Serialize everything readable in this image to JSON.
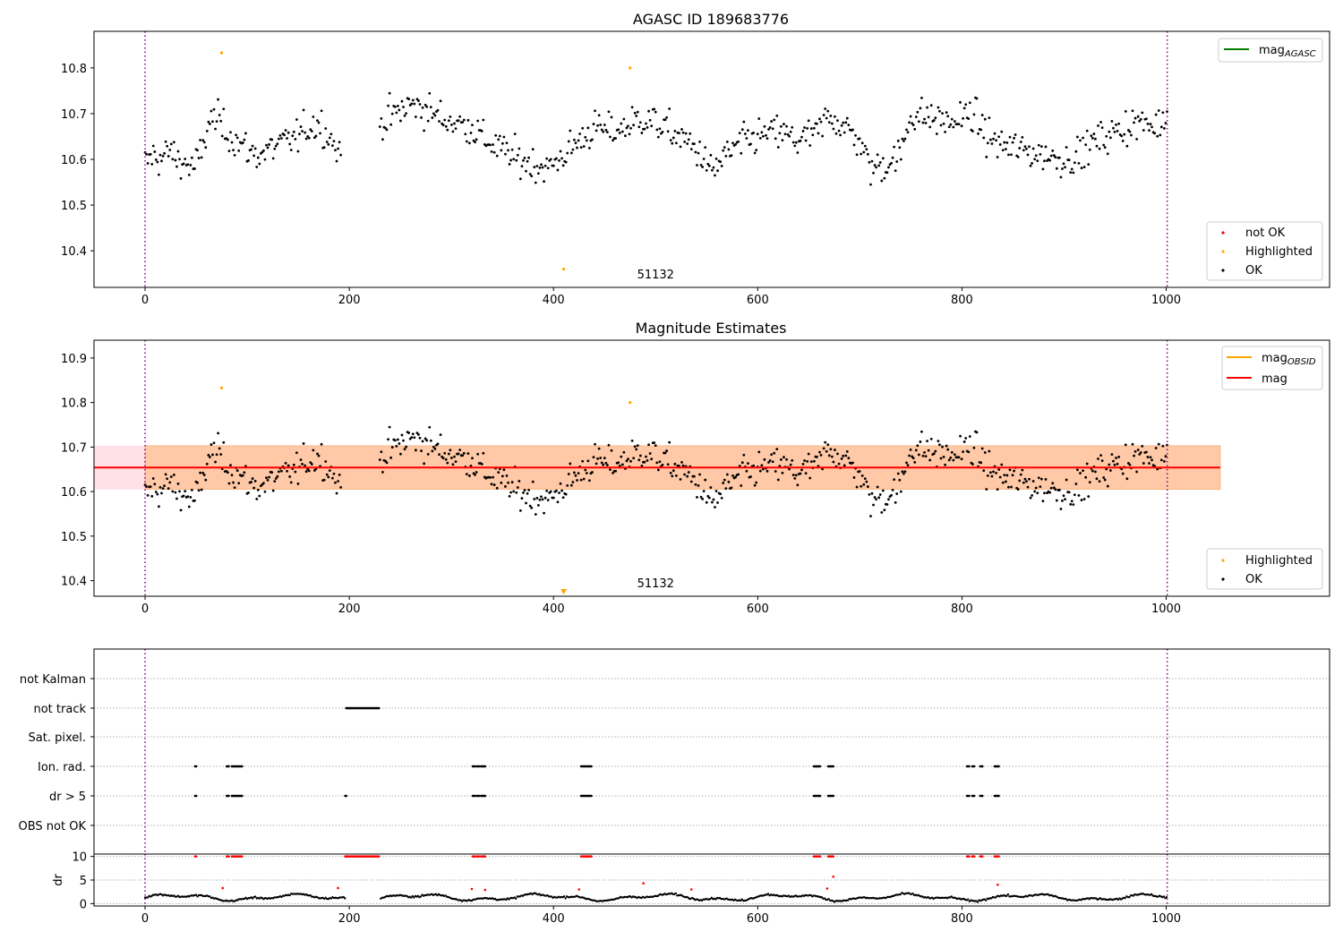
{
  "colors": {
    "ok": "#000000",
    "not_ok": "#ff0000",
    "highlighted": "#ffa500",
    "mag_agasc": "#008000",
    "mag_obsid": "#ffa500",
    "mag": "#ff0000",
    "band_inner": "#ffc8a6",
    "band_outer": "#ffe0e6",
    "obs_boundary": "#800080"
  },
  "chart_data": [
    {
      "type": "scatter",
      "title": "AGASC ID 189683776",
      "xlabel": "",
      "ylabel": "",
      "xlim": [
        -50,
        1160
      ],
      "ylim": [
        10.32,
        10.88
      ],
      "xticks": [
        0,
        200,
        400,
        600,
        800,
        1000
      ],
      "yticks": [
        10.4,
        10.5,
        10.6,
        10.7,
        10.8
      ],
      "obs_boundaries": [
        0,
        1001
      ],
      "obsid_label": {
        "text": "51132",
        "x": 500,
        "y": 10.34
      },
      "legend_lines": [
        {
          "name": "mag_AGASC",
          "base": "mag",
          "sub": "AGASC",
          "color": "#008000"
        }
      ],
      "legend_points": [
        {
          "name": "not OK",
          "color": "#ff0000"
        },
        {
          "name": "Highlighted",
          "color": "#ffa500"
        },
        {
          "name": "OK",
          "color": "#000000"
        }
      ],
      "lc_segments": [
        {
          "x": [
            0,
            8,
            16,
            24,
            32,
            40,
            48,
            56,
            62,
            70,
            80,
            90,
            100,
            110,
            120,
            130,
            140,
            150,
            160,
            170,
            178,
            186,
            192
          ],
          "y": [
            10.59,
            10.61,
            10.6,
            10.62,
            10.6,
            10.59,
            10.58,
            10.62,
            10.68,
            10.69,
            10.66,
            10.64,
            10.62,
            10.61,
            10.62,
            10.63,
            10.64,
            10.65,
            10.67,
            10.68,
            10.66,
            10.63,
            10.6
          ]
        },
        {
          "x": [
            230,
            245,
            260,
            275,
            290,
            305,
            320,
            335,
            350,
            365,
            380,
            395,
            410,
            425,
            440,
            455,
            470,
            485,
            500,
            515,
            530,
            545,
            555,
            565,
            580,
            600,
            620,
            640,
            660,
            670,
            680,
            700,
            710,
            725,
            740,
            750,
            770,
            790,
            810,
            825,
            840,
            860,
            880,
            900,
            915,
            930,
            950,
            970,
            990,
            1001
          ],
          "y": [
            10.68,
            10.7,
            10.72,
            10.71,
            10.69,
            10.68,
            10.67,
            10.64,
            10.62,
            10.6,
            10.59,
            10.58,
            10.61,
            10.64,
            10.67,
            10.66,
            10.67,
            10.69,
            10.68,
            10.66,
            10.64,
            10.61,
            10.57,
            10.6,
            10.63,
            10.65,
            10.66,
            10.64,
            10.66,
            10.7,
            10.68,
            10.64,
            10.58,
            10.59,
            10.61,
            10.7,
            10.69,
            10.68,
            10.7,
            10.65,
            10.63,
            10.62,
            10.61,
            10.6,
            10.61,
            10.64,
            10.66,
            10.68,
            10.67,
            10.7
          ]
        }
      ],
      "highlighted_points": {
        "x": [
          75,
          410,
          475
        ],
        "y": [
          10.833,
          10.36,
          10.8
        ]
      }
    },
    {
      "type": "scatter",
      "title": "Magnitude Estimates",
      "xlabel": "",
      "ylabel": "",
      "xlim": [
        -50,
        1160
      ],
      "ylim": [
        10.365,
        10.94
      ],
      "xticks": [
        0,
        200,
        400,
        600,
        800,
        1000
      ],
      "yticks": [
        10.4,
        10.5,
        10.6,
        10.7,
        10.8,
        10.9
      ],
      "obs_boundaries": [
        0,
        1001
      ],
      "obsid_label": {
        "text": "51132",
        "x": 500,
        "y": 10.385
      },
      "mag_line": {
        "x": [
          -50,
          1053
        ],
        "y": 10.654
      },
      "band_outer": {
        "x": [
          -50,
          1053
        ],
        "y": [
          10.605,
          10.703
        ]
      },
      "band_inner": {
        "x": [
          0,
          1053
        ],
        "y": [
          10.605,
          10.703
        ]
      },
      "legend_lines": [
        {
          "name": "mag_OBSID",
          "base": "mag",
          "sub": "OBSID",
          "color": "#ffa500"
        },
        {
          "name": "mag",
          "base": "mag",
          "sub": "",
          "color": "#ff0000"
        }
      ],
      "legend_points": [
        {
          "name": "Highlighted",
          "color": "#ffa500"
        },
        {
          "name": "OK",
          "color": "#000000"
        }
      ],
      "highlighted_points": {
        "x": [
          75,
          475
        ],
        "y": [
          10.833,
          10.8
        ]
      },
      "off_scale_marker": {
        "x": 410
      }
    },
    {
      "type": "scatter",
      "title": "",
      "xlabel": "",
      "ylabel": "dr",
      "xlim": [
        -50,
        1160
      ],
      "flags_ylabels": [
        "not Kalman",
        "not track",
        "Sat. pixel.",
        "Ion. rad.",
        "dr > 5",
        "OBS not OK"
      ],
      "flags": {
        "not track": [
          [
            197,
            229
          ]
        ],
        "Ion. rad.": [
          [
            49,
            50
          ],
          [
            80,
            82
          ],
          [
            85,
            87
          ],
          [
            88,
            95
          ],
          [
            321,
            323
          ],
          [
            325,
            327
          ],
          [
            329,
            333
          ],
          [
            427,
            437
          ],
          [
            655,
            661
          ],
          [
            669,
            674
          ],
          [
            805,
            807
          ],
          [
            810,
            812
          ],
          [
            818,
            820
          ],
          [
            832,
            836
          ]
        ],
        "dr > 5": [
          [
            49,
            50
          ],
          [
            80,
            82
          ],
          [
            85,
            87
          ],
          [
            88,
            95
          ],
          [
            196,
            197
          ],
          [
            321,
            323
          ],
          [
            325,
            327
          ],
          [
            329,
            333
          ],
          [
            427,
            437
          ],
          [
            655,
            661
          ],
          [
            669,
            674
          ],
          [
            805,
            807
          ],
          [
            810,
            812
          ],
          [
            818,
            820
          ],
          [
            832,
            836
          ]
        ]
      },
      "dr_ylim": [
        -0.5,
        10.5
      ],
      "dr_yticks": [
        0,
        5,
        10
      ],
      "dr_clipped_at": 10,
      "dr_outliers": {
        "x": [
          76,
          189,
          320,
          333,
          425,
          488,
          535,
          668,
          674,
          835
        ],
        "y": [
          3.3,
          3.3,
          3.1,
          2.9,
          3.0,
          4.3,
          3.0,
          3.2,
          5.7,
          4.0
        ]
      },
      "obs_boundaries": [
        0,
        1001
      ]
    }
  ]
}
